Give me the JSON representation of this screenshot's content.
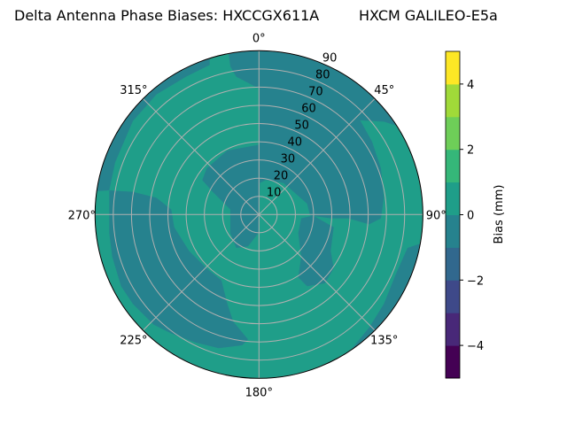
{
  "chart_data": {
    "type": "heatmap",
    "subtype": "polar-filled-contour",
    "title": "Delta Antenna Phase Biases: HXCCGX611A",
    "subtitle": "HXCM GALILEO-E5a",
    "angular_ticks": [
      "0°",
      "45°",
      "90°",
      "135°",
      "180°",
      "225°",
      "270°",
      "315°"
    ],
    "radial_ticks": [
      10,
      20,
      30,
      40,
      50,
      60,
      70,
      80,
      90
    ],
    "radial_range": [
      0,
      90
    ],
    "grid": true,
    "colorbar": {
      "label": "Bias (mm)",
      "range": [
        -5,
        5
      ],
      "levels": [
        -5,
        -4,
        -3,
        -2,
        -1,
        0,
        1,
        2,
        3,
        4,
        5
      ],
      "ticks": [
        -4,
        -2,
        0,
        2,
        4
      ],
      "tick_labels": [
        "−4",
        "−2",
        "0",
        "2",
        "4"
      ],
      "colormap": "viridis",
      "colors": [
        "#440154",
        "#482878",
        "#3e4989",
        "#31688e",
        "#26828e",
        "#1f9e89",
        "#35b779",
        "#6ece58",
        "#a0da39",
        "#fde725"
      ]
    },
    "regions": [
      {
        "range": [
          0,
          1
        ],
        "description_color": "#1f9e89"
      },
      {
        "range": [
          -1,
          0
        ],
        "description_color": "#26828e"
      }
    ]
  }
}
